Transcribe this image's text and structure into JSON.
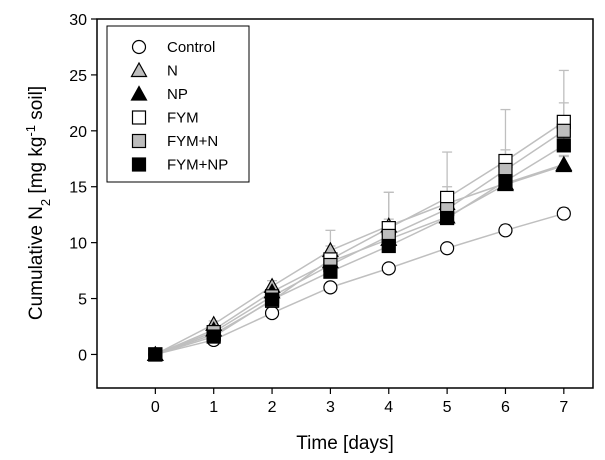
{
  "chart_data": {
    "type": "scatter",
    "xlabel": "Time [days]",
    "ylabel": {
      "prefix": "Cumulative N",
      "sub": "2",
      "mid": " [mg kg",
      "sup": "-1",
      "suffix": " soil]"
    },
    "xlim": [
      -1,
      7.5
    ],
    "ylim": [
      -3,
      30
    ],
    "x_ticks": [
      0,
      1,
      2,
      3,
      4,
      5,
      6,
      7
    ],
    "y_ticks": [
      0,
      5,
      10,
      15,
      20,
      25,
      30
    ],
    "grid": false,
    "legend_position": "top-left",
    "x": [
      0,
      1,
      2,
      3,
      4,
      5,
      6,
      7
    ],
    "line_color": "#bfbfbf",
    "errorbar_color": "#bfbfbf",
    "series": [
      {
        "name": "Control",
        "marker": "circle",
        "fill": "#ffffff",
        "values": [
          0,
          1.3,
          3.7,
          6.0,
          7.7,
          9.5,
          11.1,
          12.6
        ],
        "errors": [
          0,
          0.2,
          0.3,
          0.4,
          0.4,
          0.4,
          0.5,
          0.5
        ]
      },
      {
        "name": "N",
        "marker": "triangle",
        "fill": "#bdbdbd",
        "values": [
          0,
          2.7,
          6.1,
          9.3,
          11.5,
          13.5,
          15.3,
          17.0
        ],
        "errors": [
          0,
          0.3,
          0.5,
          1.8,
          3.0,
          0.8,
          1.5,
          0.8
        ]
      },
      {
        "name": "NP",
        "marker": "triangle",
        "fill": "#000000",
        "values": [
          0,
          2.2,
          5.6,
          8.3,
          10.3,
          12.3,
          15.2,
          16.9
        ],
        "errors": [
          0,
          0.2,
          0.4,
          0.6,
          1.0,
          0.8,
          1.0,
          0.8
        ]
      },
      {
        "name": "FYM",
        "marker": "square",
        "fill": "#ffffff",
        "values": [
          0,
          1.8,
          4.8,
          8.5,
          11.3,
          14.0,
          17.3,
          20.8
        ],
        "errors": [
          0,
          0.3,
          0.6,
          1.2,
          3.2,
          4.1,
          4.6,
          4.6
        ]
      },
      {
        "name": "FYM+N",
        "marker": "square",
        "fill": "#bdbdbd",
        "values": [
          0,
          2.0,
          5.2,
          8.0,
          10.6,
          13.0,
          16.5,
          20.0
        ],
        "errors": [
          0,
          0.3,
          0.5,
          1.0,
          1.5,
          2.0,
          1.8,
          2.5
        ]
      },
      {
        "name": "FYM+NP",
        "marker": "square",
        "fill": "#000000",
        "values": [
          0,
          1.6,
          4.9,
          7.4,
          9.7,
          12.2,
          15.5,
          18.7
        ],
        "errors": [
          0,
          0.2,
          0.4,
          0.6,
          0.8,
          1.0,
          1.2,
          1.5
        ]
      }
    ]
  }
}
